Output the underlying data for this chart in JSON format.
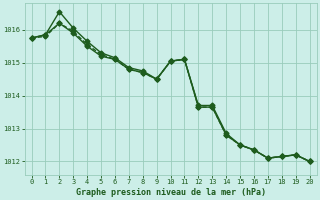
{
  "xlabel": "Graphe pression niveau de la mer (hPa)",
  "xlim": [
    -0.5,
    20.5
  ],
  "ylim": [
    1011.6,
    1016.8
  ],
  "yticks": [
    1012,
    1013,
    1014,
    1015,
    1016
  ],
  "xticks": [
    0,
    1,
    2,
    3,
    4,
    5,
    6,
    7,
    8,
    9,
    10,
    11,
    12,
    13,
    14,
    15,
    16,
    17,
    18,
    19,
    20
  ],
  "background_color": "#cceee8",
  "line_color": "#1e5c1e",
  "grid_color": "#99ccbb",
  "line1": [
    1015.75,
    1015.85,
    1016.55,
    1016.05,
    1015.65,
    1015.3,
    1015.15,
    1014.85,
    1014.75,
    1014.5,
    1015.05,
    1015.1,
    1013.7,
    1013.7,
    1012.85,
    1012.5,
    1012.35,
    1012.1,
    1012.15,
    1012.2,
    1012.0
  ],
  "line2": [
    1015.75,
    1015.8,
    1016.2,
    1015.95,
    1015.55,
    1015.25,
    1015.1,
    1014.8,
    1014.7,
    1014.5,
    1015.05,
    1015.1,
    1013.65,
    1013.65,
    1012.8,
    1012.5,
    1012.35,
    1012.1,
    1012.15,
    1012.2,
    1012.0
  ],
  "line3": [
    1015.75,
    1015.85,
    1016.2,
    1015.9,
    1015.5,
    1015.2,
    1015.1,
    1014.8,
    1014.7,
    1014.5,
    1015.05,
    1015.1,
    1013.65,
    1013.65,
    1012.8,
    1012.5,
    1012.35,
    1012.1,
    1012.15,
    1012.2,
    1012.0
  ],
  "marker": "D",
  "markersize": 2.5,
  "linewidth": 1.0,
  "font_color": "#1e5c1e",
  "tick_fontsize": 5.0,
  "xlabel_fontsize": 6.0
}
